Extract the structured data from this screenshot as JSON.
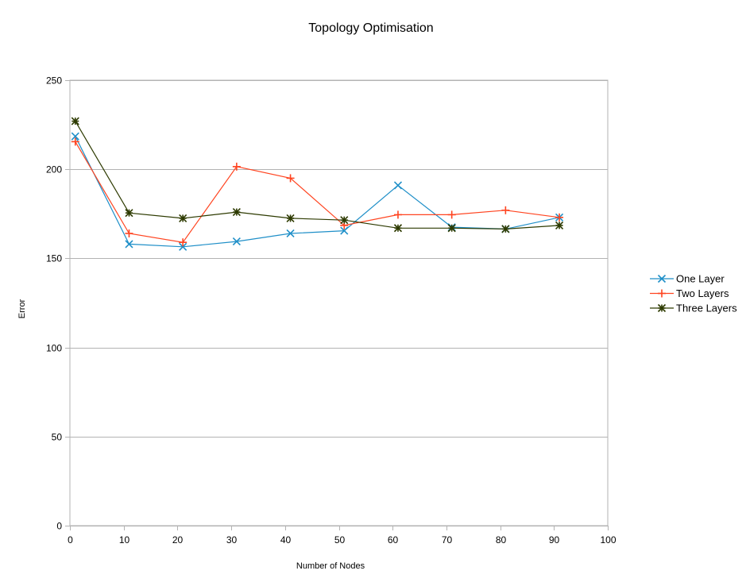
{
  "chart_data": {
    "type": "line",
    "title": "Topology Optimisation",
    "xlabel": "Number of Nodes",
    "ylabel": "Error",
    "xlim": [
      0,
      100
    ],
    "ylim": [
      0,
      250
    ],
    "x_ticks": [
      0,
      10,
      20,
      30,
      40,
      50,
      60,
      70,
      80,
      90,
      100
    ],
    "y_ticks": [
      0,
      50,
      100,
      150,
      200,
      250
    ],
    "grid": "horizontal",
    "legend_position": "right",
    "x": [
      1,
      11,
      21,
      31,
      41,
      51,
      61,
      71,
      81,
      91
    ],
    "series": [
      {
        "name": "One Layer",
        "color": "#1f8fc8",
        "marker": "x",
        "values": [
          218.5,
          158,
          156.5,
          159.5,
          164,
          165.5,
          191,
          167.5,
          166.5,
          173
        ]
      },
      {
        "name": "Two Layers",
        "color": "#ff4420",
        "marker": "+",
        "values": [
          215.5,
          164,
          159,
          201.5,
          195,
          168.5,
          174.5,
          174.5,
          177,
          173
        ]
      },
      {
        "name": "Three Layers",
        "color": "#2d3a00",
        "marker": "star",
        "values": [
          227,
          175.5,
          172.5,
          176,
          172.5,
          171.5,
          167,
          167,
          166.5,
          168.5
        ]
      }
    ]
  }
}
